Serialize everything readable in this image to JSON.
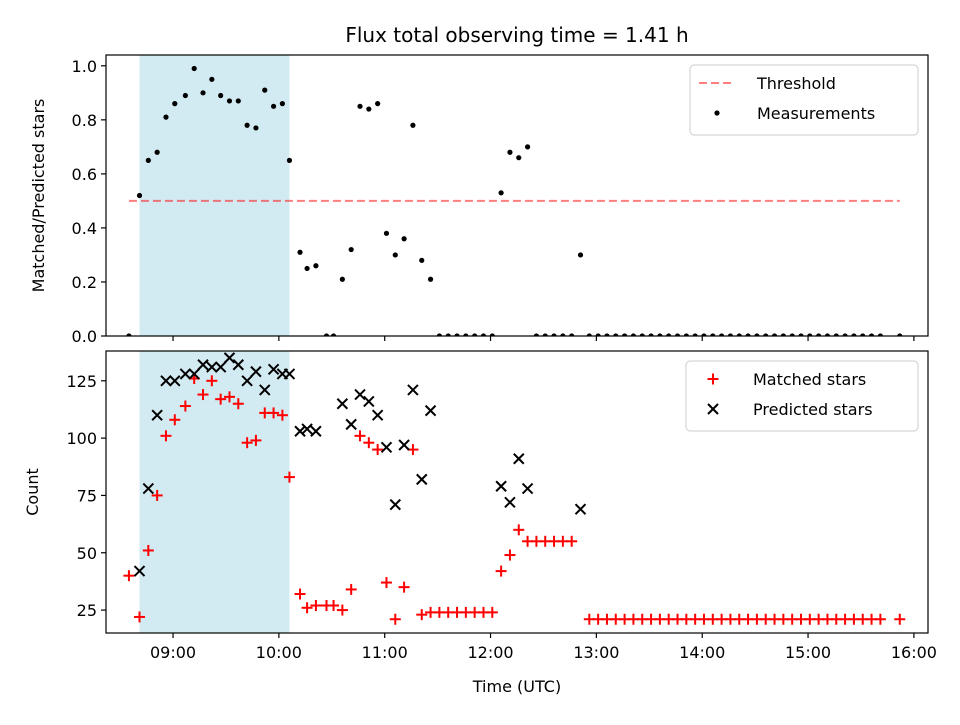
{
  "title": "Flux total observing time = 1.41 h",
  "colors": {
    "shade": "#add8e6",
    "threshold": "#ff0000",
    "measurements": "#000000",
    "matched": "#ff0000",
    "predicted": "#000000"
  },
  "xaxis": {
    "label": "Time (UTC)",
    "range": [
      "08:22",
      "16:08"
    ],
    "ticks": [
      "09:00",
      "10:00",
      "11:00",
      "12:00",
      "13:00",
      "14:00",
      "15:00",
      "16:00"
    ]
  },
  "chart_data": [
    {
      "type": "scatter",
      "ylabel": "Matched/Predicted stars",
      "ylim": [
        0,
        1.04
      ],
      "yticks": [
        "0.0",
        "0.2",
        "0.4",
        "0.6",
        "0.8",
        "1.0"
      ],
      "shaded_interval": [
        "08:41",
        "10:06"
      ],
      "legend_position": "top-right",
      "threshold": {
        "name": "Threshold",
        "value": 0.5,
        "x_range": [
          "08:35",
          "15:52"
        ],
        "style": "dashed"
      },
      "series": [
        {
          "name": "Measurements",
          "points": [
            [
              "08:35",
              0.0
            ],
            [
              "08:41",
              0.52
            ],
            [
              "08:46",
              0.65
            ],
            [
              "08:51",
              0.68
            ],
            [
              "08:56",
              0.81
            ],
            [
              "09:01",
              0.86
            ],
            [
              "09:07",
              0.89
            ],
            [
              "09:12",
              0.99
            ],
            [
              "09:17",
              0.9
            ],
            [
              "09:22",
              0.95
            ],
            [
              "09:27",
              0.89
            ],
            [
              "09:32",
              0.87
            ],
            [
              "09:37",
              0.87
            ],
            [
              "09:42",
              0.78
            ],
            [
              "09:47",
              0.77
            ],
            [
              "09:52",
              0.91
            ],
            [
              "09:57",
              0.85
            ],
            [
              "10:02",
              0.86
            ],
            [
              "10:06",
              0.65
            ],
            [
              "10:12",
              0.31
            ],
            [
              "10:16",
              0.25
            ],
            [
              "10:21",
              0.26
            ],
            [
              "10:27",
              0.0
            ],
            [
              "10:31",
              0.0
            ],
            [
              "10:36",
              0.21
            ],
            [
              "10:41",
              0.32
            ],
            [
              "10:46",
              0.85
            ],
            [
              "10:51",
              0.84
            ],
            [
              "10:56",
              0.86
            ],
            [
              "11:01",
              0.38
            ],
            [
              "11:06",
              0.3
            ],
            [
              "11:11",
              0.36
            ],
            [
              "11:16",
              0.78
            ],
            [
              "11:21",
              0.28
            ],
            [
              "11:26",
              0.21
            ],
            [
              "11:31",
              0.0
            ],
            [
              "11:36",
              0.0
            ],
            [
              "11:41",
              0.0
            ],
            [
              "11:46",
              0.0
            ],
            [
              "11:51",
              0.0
            ],
            [
              "11:56",
              0.0
            ],
            [
              "12:01",
              0.0
            ],
            [
              "12:06",
              0.53
            ],
            [
              "12:11",
              0.68
            ],
            [
              "12:16",
              0.66
            ],
            [
              "12:21",
              0.7
            ],
            [
              "12:26",
              0.0
            ],
            [
              "12:31",
              0.0
            ],
            [
              "12:36",
              0.0
            ],
            [
              "12:41",
              0.0
            ],
            [
              "12:46",
              0.0
            ],
            [
              "12:51",
              0.3
            ],
            [
              "12:56",
              0.0
            ],
            [
              "13:01",
              0.0
            ],
            [
              "13:06",
              0.0
            ],
            [
              "13:11",
              0.0
            ],
            [
              "13:16",
              0.0
            ],
            [
              "13:21",
              0.0
            ],
            [
              "13:26",
              0.0
            ],
            [
              "13:31",
              0.0
            ],
            [
              "13:36",
              0.0
            ],
            [
              "13:41",
              0.0
            ],
            [
              "13:46",
              0.0
            ],
            [
              "13:51",
              0.0
            ],
            [
              "13:56",
              0.0
            ],
            [
              "14:01",
              0.0
            ],
            [
              "14:06",
              0.0
            ],
            [
              "14:11",
              0.0
            ],
            [
              "14:16",
              0.0
            ],
            [
              "14:21",
              0.0
            ],
            [
              "14:26",
              0.0
            ],
            [
              "14:31",
              0.0
            ],
            [
              "14:36",
              0.0
            ],
            [
              "14:41",
              0.0
            ],
            [
              "14:46",
              0.0
            ],
            [
              "14:51",
              0.0
            ],
            [
              "14:56",
              0.0
            ],
            [
              "15:01",
              0.0
            ],
            [
              "15:06",
              0.0
            ],
            [
              "15:11",
              0.0
            ],
            [
              "15:16",
              0.0
            ],
            [
              "15:21",
              0.0
            ],
            [
              "15:26",
              0.0
            ],
            [
              "15:31",
              0.0
            ],
            [
              "15:36",
              0.0
            ],
            [
              "15:41",
              0.0
            ],
            [
              "15:52",
              0.0
            ]
          ]
        }
      ]
    },
    {
      "type": "scatter",
      "ylabel": "Count",
      "ylim": [
        15,
        138
      ],
      "yticks": [
        "25",
        "50",
        "75",
        "100",
        "125"
      ],
      "shaded_interval": [
        "08:41",
        "10:06"
      ],
      "legend_position": "top-right",
      "series": [
        {
          "name": "Matched stars",
          "marker": "plus",
          "points": [
            [
              "08:35",
              40
            ],
            [
              "08:41",
              22
            ],
            [
              "08:46",
              51
            ],
            [
              "08:51",
              75
            ],
            [
              "08:56",
              101
            ],
            [
              "09:01",
              108
            ],
            [
              "09:07",
              114
            ],
            [
              "09:12",
              126
            ],
            [
              "09:17",
              119
            ],
            [
              "09:22",
              125
            ],
            [
              "09:27",
              117
            ],
            [
              "09:32",
              118
            ],
            [
              "09:37",
              115
            ],
            [
              "09:42",
              98
            ],
            [
              "09:47",
              99
            ],
            [
              "09:52",
              111
            ],
            [
              "09:57",
              111
            ],
            [
              "10:02",
              110
            ],
            [
              "10:06",
              83
            ],
            [
              "10:12",
              32
            ],
            [
              "10:16",
              26
            ],
            [
              "10:21",
              27
            ],
            [
              "10:27",
              27
            ],
            [
              "10:31",
              27
            ],
            [
              "10:36",
              25
            ],
            [
              "10:41",
              34
            ],
            [
              "10:46",
              101
            ],
            [
              "10:51",
              98
            ],
            [
              "10:56",
              95
            ],
            [
              "11:01",
              37
            ],
            [
              "11:06",
              21
            ],
            [
              "11:11",
              35
            ],
            [
              "11:16",
              95
            ],
            [
              "11:21",
              23
            ],
            [
              "11:26",
              24
            ],
            [
              "11:31",
              24
            ],
            [
              "11:36",
              24
            ],
            [
              "11:41",
              24
            ],
            [
              "11:46",
              24
            ],
            [
              "11:51",
              24
            ],
            [
              "11:56",
              24
            ],
            [
              "12:01",
              24
            ],
            [
              "12:06",
              42
            ],
            [
              "12:11",
              49
            ],
            [
              "12:16",
              60
            ],
            [
              "12:21",
              55
            ],
            [
              "12:26",
              55
            ],
            [
              "12:31",
              55
            ],
            [
              "12:36",
              55
            ],
            [
              "12:41",
              55
            ],
            [
              "12:46",
              55
            ],
            [
              "12:56",
              21
            ],
            [
              "13:01",
              21
            ],
            [
              "13:06",
              21
            ],
            [
              "13:11",
              21
            ],
            [
              "13:16",
              21
            ],
            [
              "13:21",
              21
            ],
            [
              "13:26",
              21
            ],
            [
              "13:31",
              21
            ],
            [
              "13:36",
              21
            ],
            [
              "13:41",
              21
            ],
            [
              "13:46",
              21
            ],
            [
              "13:51",
              21
            ],
            [
              "13:56",
              21
            ],
            [
              "14:01",
              21
            ],
            [
              "14:06",
              21
            ],
            [
              "14:11",
              21
            ],
            [
              "14:16",
              21
            ],
            [
              "14:21",
              21
            ],
            [
              "14:26",
              21
            ],
            [
              "14:31",
              21
            ],
            [
              "14:36",
              21
            ],
            [
              "14:41",
              21
            ],
            [
              "14:46",
              21
            ],
            [
              "14:51",
              21
            ],
            [
              "14:56",
              21
            ],
            [
              "15:01",
              21
            ],
            [
              "15:06",
              21
            ],
            [
              "15:11",
              21
            ],
            [
              "15:16",
              21
            ],
            [
              "15:21",
              21
            ],
            [
              "15:26",
              21
            ],
            [
              "15:31",
              21
            ],
            [
              "15:36",
              21
            ],
            [
              "15:41",
              21
            ],
            [
              "15:52",
              21
            ]
          ]
        },
        {
          "name": "Predicted stars",
          "marker": "x",
          "points": [
            [
              "08:41",
              42
            ],
            [
              "08:46",
              78
            ],
            [
              "08:51",
              110
            ],
            [
              "08:56",
              125
            ],
            [
              "09:01",
              125
            ],
            [
              "09:07",
              128
            ],
            [
              "09:12",
              128
            ],
            [
              "09:17",
              132
            ],
            [
              "09:22",
              131
            ],
            [
              "09:27",
              131
            ],
            [
              "09:32",
              135
            ],
            [
              "09:37",
              132
            ],
            [
              "09:42",
              125
            ],
            [
              "09:47",
              129
            ],
            [
              "09:52",
              121
            ],
            [
              "09:57",
              130
            ],
            [
              "10:02",
              128
            ],
            [
              "10:06",
              128
            ],
            [
              "10:12",
              103
            ],
            [
              "10:16",
              104
            ],
            [
              "10:21",
              103
            ],
            [
              "10:36",
              115
            ],
            [
              "10:41",
              106
            ],
            [
              "10:46",
              119
            ],
            [
              "10:51",
              116
            ],
            [
              "10:56",
              110
            ],
            [
              "11:01",
              96
            ],
            [
              "11:06",
              71
            ],
            [
              "11:11",
              97
            ],
            [
              "11:16",
              121
            ],
            [
              "11:21",
              82
            ],
            [
              "11:26",
              112
            ],
            [
              "12:06",
              79
            ],
            [
              "12:11",
              72
            ],
            [
              "12:16",
              91
            ],
            [
              "12:21",
              78
            ],
            [
              "12:51",
              69
            ]
          ]
        }
      ]
    }
  ]
}
